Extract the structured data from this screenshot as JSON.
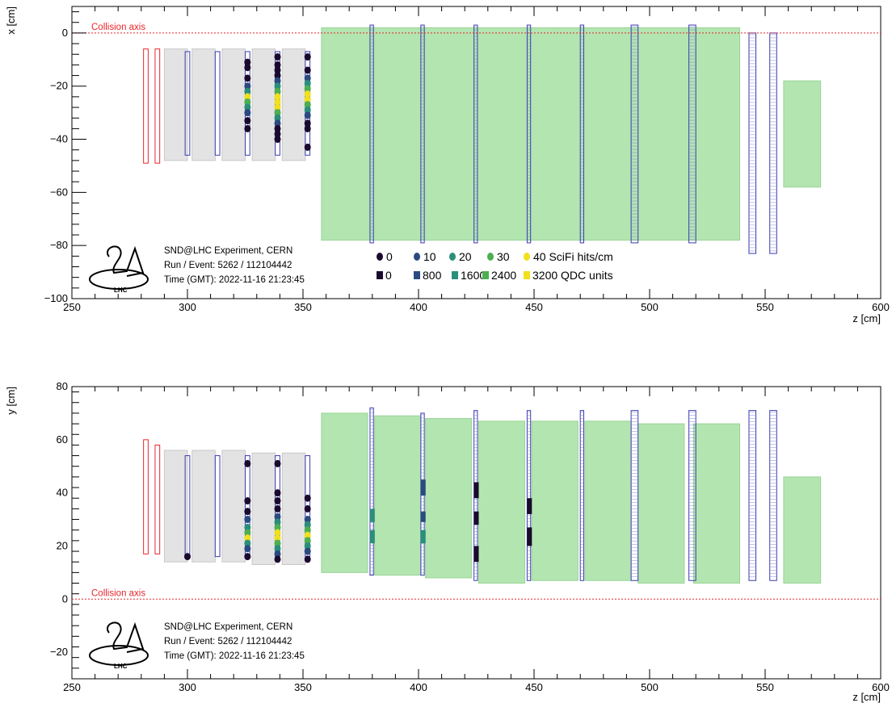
{
  "chart_data": [
    {
      "type": "scatter",
      "panel": "top",
      "xlabel": "z [cm]",
      "ylabel": "x [cm]",
      "xlim": [
        250,
        600
      ],
      "ylim": [
        -100,
        10
      ],
      "xticks": [
        250,
        300,
        350,
        400,
        450,
        500,
        550,
        600
      ],
      "yticks": [
        -100,
        -80,
        -60,
        -40,
        -20,
        0
      ],
      "collision_axis": {
        "label": "Collision axis",
        "value": 0,
        "color": "#e8262b"
      },
      "info_lines": [
        "SND@LHC Experiment, CERN",
        "Run / Event: 5262 / 112104442",
        "Time (GMT): 2022-11-16 21:23:45"
      ],
      "logo_text": "LHC",
      "legend": {
        "scifi": {
          "labels": [
            "0",
            "10",
            "20",
            "30",
            "40 SciFi hits/cm"
          ],
          "colors": [
            "#1a0b2e",
            "#2b4a7f",
            "#2a8f7a",
            "#4caf50",
            "#f0e01e"
          ]
        },
        "qdc": {
          "labels": [
            "0",
            "800",
            "1600",
            "2400",
            "3200 QDC units"
          ],
          "colors": [
            "#1a0b2e",
            "#2b4a7f",
            "#2a8f7a",
            "#4caf50",
            "#f0e01e"
          ]
        }
      },
      "detectors": {
        "veto": [
          {
            "z1": 281,
            "z2": 283,
            "y1": -49,
            "y2": -6
          },
          {
            "z1": 286,
            "z2": 288,
            "y1": -49,
            "y2": -6
          }
        ],
        "wall": [
          {
            "z1": 290,
            "z2": 300,
            "y1": -48,
            "y2": -6
          },
          {
            "z1": 302,
            "z2": 312,
            "y1": -48,
            "y2": -6
          },
          {
            "z1": 315,
            "z2": 325,
            "y1": -48,
            "y2": -6
          },
          {
            "z1": 328,
            "z2": 338,
            "y1": -48,
            "y2": -6
          },
          {
            "z1": 341,
            "z2": 351,
            "y1": -48,
            "y2": -6
          }
        ],
        "scifi": [
          {
            "z1": 299,
            "z2": 301,
            "y1": -46,
            "y2": -7
          },
          {
            "z1": 312,
            "z2": 314,
            "y1": -46,
            "y2": -7
          },
          {
            "z1": 325,
            "z2": 327,
            "y1": -46,
            "y2": -7
          },
          {
            "z1": 338,
            "z2": 340,
            "y1": -46,
            "y2": -7
          },
          {
            "z1": 351,
            "z2": 353,
            "y1": -46,
            "y2": -7
          }
        ],
        "us": [
          {
            "z1": 358,
            "z2": 539,
            "y1": -78,
            "y2": 2
          }
        ],
        "us_det": [
          {
            "z1": 379,
            "z2": 380.5,
            "y1": -79,
            "y2": 3
          },
          {
            "z1": 401,
            "z2": 402.5,
            "y1": -79,
            "y2": 3
          },
          {
            "z1": 424,
            "z2": 425.5,
            "y1": -79,
            "y2": 3
          },
          {
            "z1": 447,
            "z2": 448.5,
            "y1": -79,
            "y2": 3
          },
          {
            "z1": 470,
            "z2": 471.5,
            "y1": -79,
            "y2": 3
          },
          {
            "z1": 492,
            "z2": 495,
            "y1": -79,
            "y2": 3
          },
          {
            "z1": 517,
            "z2": 520,
            "y1": -79,
            "y2": 3
          }
        ],
        "ds_det": [
          {
            "z1": 543,
            "z2": 546,
            "y1": -83,
            "y2": 0
          },
          {
            "z1": 552,
            "z2": 555,
            "y1": -83,
            "y2": 0
          }
        ],
        "ds_abs": [
          {
            "z1": 558,
            "z2": 574,
            "y1": -58,
            "y2": -18
          }
        ]
      },
      "hits": [
        {
          "z": 326,
          "y": -11,
          "level": 0
        },
        {
          "z": 326,
          "y": -13,
          "level": 0
        },
        {
          "z": 326,
          "y": -17,
          "level": 0
        },
        {
          "z": 326,
          "y": -20,
          "level": 1
        },
        {
          "z": 326,
          "y": -22,
          "level": 2
        },
        {
          "z": 326,
          "y": -24,
          "level": 4
        },
        {
          "z": 326,
          "y": -26,
          "level": 3
        },
        {
          "z": 326,
          "y": -28,
          "level": 2
        },
        {
          "z": 326,
          "y": -30,
          "level": 1
        },
        {
          "z": 326,
          "y": -33,
          "level": 0
        },
        {
          "z": 326,
          "y": -36,
          "level": 0
        },
        {
          "z": 339,
          "y": -9,
          "level": 0
        },
        {
          "z": 339,
          "y": -12,
          "level": 0
        },
        {
          "z": 339,
          "y": -14,
          "level": 0
        },
        {
          "z": 339,
          "y": -16,
          "level": 0
        },
        {
          "z": 339,
          "y": -18,
          "level": 1
        },
        {
          "z": 339,
          "y": -20,
          "level": 2
        },
        {
          "z": 339,
          "y": -22,
          "level": 3
        },
        {
          "z": 339,
          "y": -24,
          "level": 4
        },
        {
          "z": 339,
          "y": -26,
          "level": 4
        },
        {
          "z": 339,
          "y": -28,
          "level": 4
        },
        {
          "z": 339,
          "y": -30,
          "level": 3
        },
        {
          "z": 339,
          "y": -32,
          "level": 2
        },
        {
          "z": 339,
          "y": -34,
          "level": 1
        },
        {
          "z": 339,
          "y": -36,
          "level": 0
        },
        {
          "z": 339,
          "y": -38,
          "level": 0
        },
        {
          "z": 339,
          "y": -40,
          "level": 0
        },
        {
          "z": 352,
          "y": -9,
          "level": 0
        },
        {
          "z": 352,
          "y": -14,
          "level": 0
        },
        {
          "z": 352,
          "y": -17,
          "level": 1
        },
        {
          "z": 352,
          "y": -19,
          "level": 2
        },
        {
          "z": 352,
          "y": -21,
          "level": 3
        },
        {
          "z": 352,
          "y": -23,
          "level": 4
        },
        {
          "z": 352,
          "y": -25,
          "level": 4
        },
        {
          "z": 352,
          "y": -27,
          "level": 3
        },
        {
          "z": 352,
          "y": -29,
          "level": 2
        },
        {
          "z": 352,
          "y": -31,
          "level": 1
        },
        {
          "z": 352,
          "y": -34,
          "level": 0
        },
        {
          "z": 352,
          "y": -36,
          "level": 0
        },
        {
          "z": 352,
          "y": -43,
          "level": 0
        }
      ],
      "qdc_bars": []
    },
    {
      "type": "scatter",
      "panel": "bottom",
      "xlabel": "z [cm]",
      "ylabel": "y [cm]",
      "xlim": [
        250,
        600
      ],
      "ylim": [
        -30,
        80
      ],
      "xticks": [
        250,
        300,
        350,
        400,
        450,
        500,
        550,
        600
      ],
      "yticks": [
        -20,
        0,
        20,
        40,
        60,
        80
      ],
      "collision_axis": {
        "label": "Collision axis",
        "value": 0,
        "color": "#e8262b"
      },
      "info_lines": [
        "SND@LHC Experiment, CERN",
        "Run / Event: 5262 / 112104442",
        "Time (GMT): 2022-11-16 21:23:45"
      ],
      "logo_text": "LHC",
      "detectors": {
        "veto": [
          {
            "z1": 281,
            "z2": 283,
            "y1": 17,
            "y2": 60
          },
          {
            "z1": 286,
            "z2": 288,
            "y1": 17,
            "y2": 58
          }
        ],
        "wall": [
          {
            "z1": 290,
            "z2": 300,
            "y1": 14,
            "y2": 56
          },
          {
            "z1": 302,
            "z2": 312,
            "y1": 14,
            "y2": 56
          },
          {
            "z1": 315,
            "z2": 325,
            "y1": 14,
            "y2": 56
          },
          {
            "z1": 328,
            "z2": 338,
            "y1": 13,
            "y2": 55
          },
          {
            "z1": 341,
            "z2": 351,
            "y1": 13,
            "y2": 55
          }
        ],
        "scifi": [
          {
            "z1": 299,
            "z2": 301,
            "y1": 16,
            "y2": 54
          },
          {
            "z1": 312,
            "z2": 314,
            "y1": 16,
            "y2": 54
          },
          {
            "z1": 325,
            "z2": 327,
            "y1": 16,
            "y2": 54
          },
          {
            "z1": 338,
            "z2": 340,
            "y1": 16,
            "y2": 54
          },
          {
            "z1": 351,
            "z2": 353,
            "y1": 16,
            "y2": 54
          }
        ],
        "us": [
          {
            "z1": 358,
            "z2": 378,
            "y1": 10,
            "y2": 70
          },
          {
            "z1": 381,
            "z2": 401,
            "y1": 9,
            "y2": 69
          },
          {
            "z1": 403,
            "z2": 423,
            "y1": 8,
            "y2": 68
          },
          {
            "z1": 426,
            "z2": 446,
            "y1": 6,
            "y2": 67
          },
          {
            "z1": 449,
            "z2": 469,
            "y1": 7,
            "y2": 67
          },
          {
            "z1": 472,
            "z2": 492,
            "y1": 7,
            "y2": 67
          },
          {
            "z1": 495,
            "z2": 515,
            "y1": 6,
            "y2": 66
          },
          {
            "z1": 519,
            "z2": 539,
            "y1": 6,
            "y2": 66
          }
        ],
        "us_det": [
          {
            "z1": 379,
            "z2": 380.5,
            "y1": 9,
            "y2": 72
          },
          {
            "z1": 401,
            "z2": 402.5,
            "y1": 9,
            "y2": 70
          },
          {
            "z1": 424,
            "z2": 425.5,
            "y1": 7,
            "y2": 71
          },
          {
            "z1": 447,
            "z2": 448.5,
            "y1": 7,
            "y2": 71
          },
          {
            "z1": 470,
            "z2": 471.5,
            "y1": 7,
            "y2": 71
          },
          {
            "z1": 492,
            "z2": 495,
            "y1": 7,
            "y2": 71
          },
          {
            "z1": 517,
            "z2": 520,
            "y1": 7,
            "y2": 71
          }
        ],
        "ds_det": [
          {
            "z1": 543,
            "z2": 546,
            "y1": 7,
            "y2": 71
          },
          {
            "z1": 552,
            "z2": 555,
            "y1": 7,
            "y2": 71
          }
        ],
        "ds_abs": [
          {
            "z1": 558,
            "z2": 574,
            "y1": 6,
            "y2": 46
          }
        ]
      },
      "hits": [
        {
          "z": 300,
          "y": 16,
          "level": 0
        },
        {
          "z": 326,
          "y": 51,
          "level": 0
        },
        {
          "z": 326,
          "y": 37,
          "level": 0
        },
        {
          "z": 326,
          "y": 33,
          "level": 0
        },
        {
          "z": 326,
          "y": 30,
          "level": 1
        },
        {
          "z": 326,
          "y": 27,
          "level": 2
        },
        {
          "z": 326,
          "y": 25,
          "level": 3
        },
        {
          "z": 326,
          "y": 23,
          "level": 4
        },
        {
          "z": 326,
          "y": 21,
          "level": 2
        },
        {
          "z": 326,
          "y": 19,
          "level": 1
        },
        {
          "z": 326,
          "y": 16,
          "level": 0
        },
        {
          "z": 339,
          "y": 51,
          "level": 0
        },
        {
          "z": 339,
          "y": 40,
          "level": 0
        },
        {
          "z": 339,
          "y": 37,
          "level": 0
        },
        {
          "z": 339,
          "y": 34,
          "level": 0
        },
        {
          "z": 339,
          "y": 31,
          "level": 1
        },
        {
          "z": 339,
          "y": 29,
          "level": 2
        },
        {
          "z": 339,
          "y": 27,
          "level": 3
        },
        {
          "z": 339,
          "y": 25,
          "level": 4
        },
        {
          "z": 339,
          "y": 23,
          "level": 4
        },
        {
          "z": 339,
          "y": 21,
          "level": 3
        },
        {
          "z": 339,
          "y": 19,
          "level": 2
        },
        {
          "z": 339,
          "y": 17,
          "level": 1
        },
        {
          "z": 339,
          "y": 15,
          "level": 0
        },
        {
          "z": 352,
          "y": 38,
          "level": 0
        },
        {
          "z": 352,
          "y": 34,
          "level": 0
        },
        {
          "z": 352,
          "y": 30,
          "level": 1
        },
        {
          "z": 352,
          "y": 28,
          "level": 2
        },
        {
          "z": 352,
          "y": 26,
          "level": 3
        },
        {
          "z": 352,
          "y": 24,
          "level": 4
        },
        {
          "z": 352,
          "y": 22,
          "level": 3
        },
        {
          "z": 352,
          "y": 20,
          "level": 2
        },
        {
          "z": 352,
          "y": 18,
          "level": 1
        },
        {
          "z": 352,
          "y": 15,
          "level": 0
        }
      ],
      "qdc_bars": [
        {
          "z": 380,
          "y1": 29,
          "y2": 34,
          "level": 2
        },
        {
          "z": 380,
          "y1": 21,
          "y2": 26,
          "level": 2
        },
        {
          "z": 402,
          "y1": 39,
          "y2": 45,
          "level": 1
        },
        {
          "z": 402,
          "y1": 29,
          "y2": 33,
          "level": 1
        },
        {
          "z": 402,
          "y1": 21,
          "y2": 26,
          "level": 2
        },
        {
          "z": 425,
          "y1": 38,
          "y2": 44,
          "level": 0
        },
        {
          "z": 425,
          "y1": 28,
          "y2": 33,
          "level": 0
        },
        {
          "z": 425,
          "y1": 14,
          "y2": 20,
          "level": 0
        },
        {
          "z": 448,
          "y1": 32,
          "y2": 38,
          "level": 0
        },
        {
          "z": 448,
          "y1": 20,
          "y2": 27,
          "level": 0
        }
      ]
    }
  ]
}
